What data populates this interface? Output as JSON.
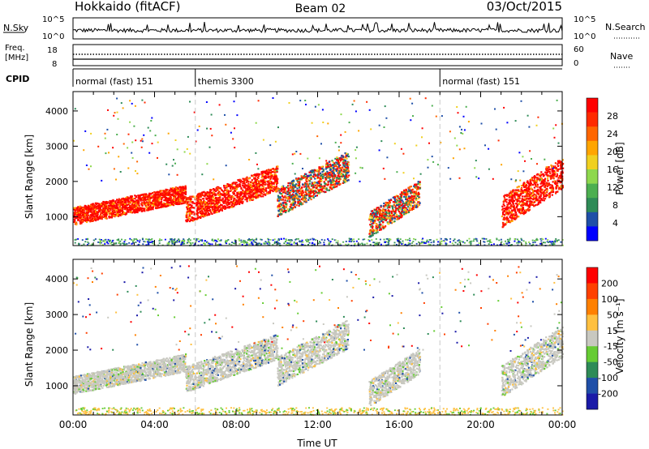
{
  "header": {
    "station": "Hokkaido (fitACF)",
    "beam": "Beam 02",
    "date": "03/Oct/2015"
  },
  "strips": {
    "nsky_label": "N.Sky",
    "nsky_ticks": [
      "10^5",
      "10^0"
    ],
    "nsearch_label": "N.Search",
    "freq_label_1": "Freq.",
    "freq_label_2": "[MHz]",
    "freq_ticks": [
      "18",
      "8"
    ],
    "nave_label": "Nave",
    "nave_ticks": [
      "60",
      "0"
    ],
    "cpid_label": "CPID",
    "cpid_segments": [
      {
        "label": "normal (fast) 151",
        "start_hour": 0,
        "end_hour": 6
      },
      {
        "label": "themis 3300",
        "start_hour": 6,
        "end_hour": 18
      },
      {
        "label": "normal (fast) 151",
        "start_hour": 18,
        "end_hour": 24
      }
    ]
  },
  "chart_data": [
    {
      "type": "heatmap",
      "title": "",
      "xlabel": "Time UT",
      "ylabel": "Slant Range [km]",
      "x_ticks": [
        "00:00",
        "04:00",
        "08:00",
        "12:00",
        "16:00",
        "20:00",
        "00:00"
      ],
      "y_ticks": [
        1000,
        2000,
        3000,
        4000
      ],
      "xlim_hours": [
        0,
        24
      ],
      "ylim_km": [
        180,
        4550
      ],
      "colorbar": {
        "label": "Power [dB]",
        "ticks": [
          "4",
          "8",
          "12",
          "16",
          "20",
          "24",
          "28"
        ],
        "colors": [
          "#0000ff",
          "#1f4fa8",
          "#2e8b57",
          "#4caf50",
          "#8ed84d",
          "#f0d020",
          "#ffa500",
          "#ff6600",
          "#ff2a00",
          "#ff0000"
        ]
      },
      "scatter_regions": [
        {
          "t0": 0,
          "t1": 5.5,
          "r0": 900,
          "r1": 1800,
          "level": "high"
        },
        {
          "t0": 5.5,
          "t1": 10,
          "r0": 1000,
          "r1": 2300,
          "level": "high"
        },
        {
          "t0": 10,
          "t1": 13.5,
          "r0": 1200,
          "r1": 2700,
          "level": "mixed"
        },
        {
          "t0": 14.5,
          "t1": 17,
          "r0": 600,
          "r1": 1900,
          "level": "mixed"
        },
        {
          "t0": 21,
          "t1": 24,
          "r0": 900,
          "r1": 2500,
          "level": "high"
        }
      ]
    },
    {
      "type": "heatmap",
      "title": "",
      "xlabel": "Time UT",
      "ylabel": "Slant Range [km]",
      "x_ticks": [
        "00:00",
        "04:00",
        "08:00",
        "12:00",
        "16:00",
        "20:00",
        "00:00"
      ],
      "y_ticks": [
        1000,
        2000,
        3000,
        4000
      ],
      "xlim_hours": [
        0,
        24
      ],
      "ylim_km": [
        180,
        4550
      ],
      "colorbar": {
        "label": "Velocity [m s⁻¹]",
        "ticks": [
          "200",
          "100",
          "50",
          "15",
          "-15",
          "-50",
          "-100",
          "-200"
        ],
        "colors": [
          "#1a1aa8",
          "#1f4fa8",
          "#2e8b57",
          "#66cc33",
          "#c8c8c0",
          "#ffc040",
          "#ff8000",
          "#ff4000",
          "#ff0000"
        ]
      },
      "scatter_regions": [
        {
          "t0": 0,
          "t1": 5.5,
          "r0": 900,
          "r1": 1800,
          "level": "ground"
        },
        {
          "t0": 5.5,
          "t1": 10,
          "r0": 1000,
          "r1": 2300,
          "level": "ground"
        },
        {
          "t0": 10,
          "t1": 13.5,
          "r0": 1200,
          "r1": 2700,
          "level": "ground"
        },
        {
          "t0": 14.5,
          "t1": 17,
          "r0": 600,
          "r1": 1900,
          "level": "ground"
        },
        {
          "t0": 21,
          "t1": 24,
          "r0": 900,
          "r1": 2500,
          "level": "ground"
        }
      ]
    }
  ]
}
